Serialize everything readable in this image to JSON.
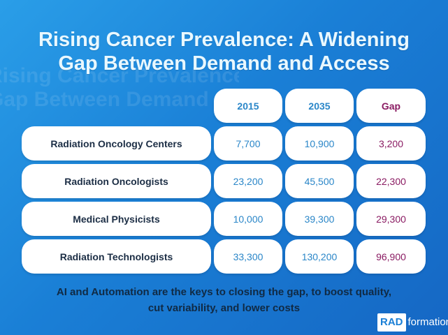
{
  "title": {
    "line1": "Rising Cancer Prevalence: A Widening",
    "line2": "Gap Between Demand and Access"
  },
  "table": {
    "headers": [
      "2015",
      "2035",
      "Gap"
    ],
    "rows": [
      {
        "label": "Radiation Oncology Centers",
        "values": [
          "7,700",
          "10,900",
          "3,200"
        ]
      },
      {
        "label": "Radiation Oncologists",
        "values": [
          "23,200",
          "45,500",
          "22,300"
        ]
      },
      {
        "label": "Medical Physicists",
        "values": [
          "10,000",
          "39,300",
          "29,300"
        ]
      },
      {
        "label": "Radiation Technologists",
        "values": [
          "33,300",
          "130,200",
          "96,900"
        ]
      }
    ]
  },
  "footer": {
    "line1": "AI and Automation are the keys to closing the gap, to boost quality,",
    "line2": "cut variability, and lower costs"
  },
  "logo": {
    "part1": "RAD",
    "part2": "formation"
  },
  "colors": {
    "background": "#1a7fd6",
    "header_blue": "#2a86c8",
    "gap_magenta": "#8a1b62",
    "label_navy": "#1c2e45"
  }
}
